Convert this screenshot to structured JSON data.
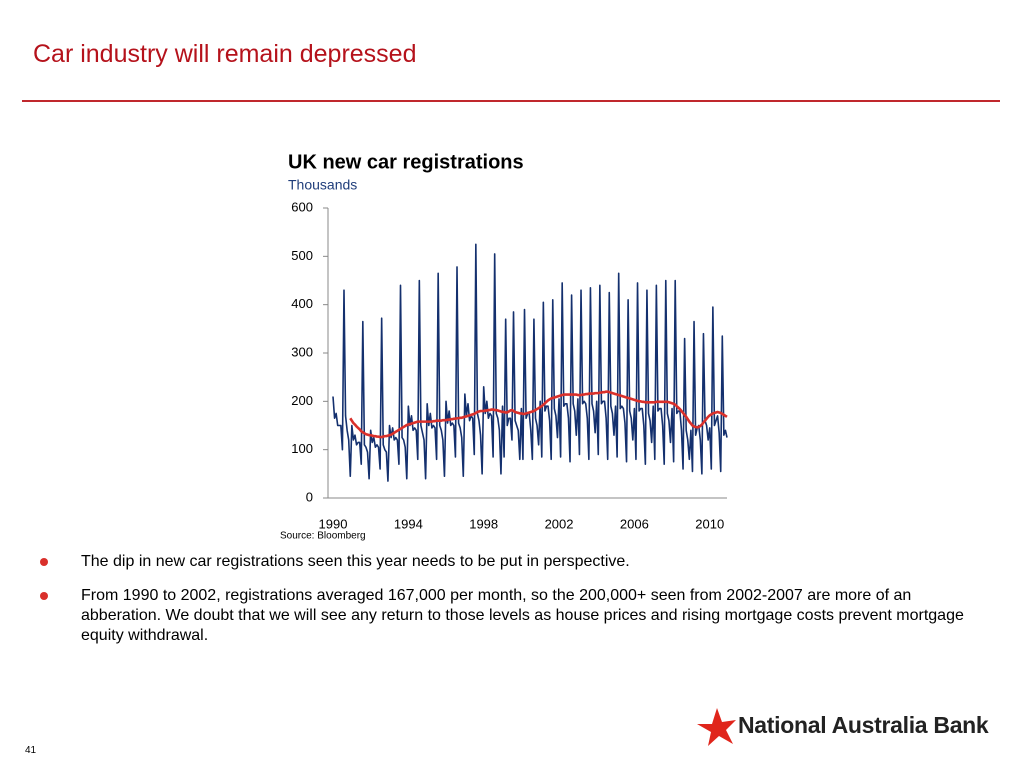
{
  "slide": {
    "title": "Car industry will remain depressed",
    "bullets": [
      "The dip in new car registrations seen this year needs to be put in perspective.",
      "From 1990 to 2002, registrations averaged 167,000 per month, so the 200,000+ seen from 2002-2007 are more of an abberation. We doubt that we will see any return to those levels as house prices and rising mortgage costs prevent mortgage equity withdrawal."
    ],
    "page_number": "41",
    "logo": "National Australia Bank"
  },
  "chart_data": {
    "type": "line",
    "title": "UK new car registrations",
    "subtitle": "Thousands",
    "source": "Source: Bloomberg",
    "categories": [
      "1990",
      null,
      null,
      null,
      null,
      null,
      null,
      null,
      null,
      null,
      null,
      null,
      null,
      null,
      null,
      null,
      null,
      null,
      null,
      null,
      null,
      null,
      null,
      null,
      null,
      null,
      null,
      null,
      null,
      null,
      null,
      null,
      null,
      null,
      null,
      null,
      null,
      null,
      null,
      null,
      null,
      null,
      null,
      null,
      null,
      null,
      null,
      null,
      "1994",
      null,
      null,
      null,
      null,
      null,
      null,
      null,
      null,
      null,
      null,
      null,
      null,
      null,
      null,
      null,
      null,
      null,
      null,
      null,
      null,
      null,
      null,
      null,
      null,
      null,
      null,
      null,
      null,
      null,
      null,
      null,
      null,
      null,
      null,
      null,
      null,
      null,
      null,
      null,
      null,
      null,
      null,
      null,
      null,
      null,
      null,
      null,
      "1998",
      null,
      null,
      null,
      null,
      null,
      null,
      null,
      null,
      null,
      null,
      null,
      null,
      null,
      null,
      null,
      null,
      null,
      null,
      null,
      null,
      null,
      null,
      null,
      null,
      null,
      null,
      null,
      null,
      null,
      null,
      null,
      null,
      null,
      null,
      null,
      null,
      null,
      null,
      null,
      null,
      null,
      null,
      null,
      null,
      null,
      null,
      null,
      "2002",
      null,
      null,
      null,
      null,
      null,
      null,
      null,
      null,
      null,
      null,
      null,
      null,
      null,
      null,
      null,
      null,
      null,
      null,
      null,
      null,
      null,
      null,
      null,
      null,
      null,
      null,
      null,
      null,
      null,
      null,
      null,
      null,
      null,
      null,
      null,
      null,
      null,
      null,
      null,
      null,
      null,
      null,
      null,
      null,
      null,
      null,
      null,
      "2006",
      null,
      null,
      null,
      null,
      null,
      null,
      null,
      null,
      null,
      null,
      null,
      null,
      null,
      null,
      null,
      null,
      null,
      null,
      null,
      null,
      null,
      null,
      null,
      null,
      null,
      null,
      null,
      null,
      null,
      null,
      null,
      null,
      null,
      null,
      null,
      null,
      null,
      null,
      null,
      null,
      null,
      null,
      null,
      null,
      null,
      null,
      null,
      "2010",
      null,
      null,
      null,
      null,
      null,
      null,
      null,
      null,
      null,
      null,
      null
    ],
    "series": [
      {
        "color": "#14306e",
        "values": [
          210,
          165,
          175,
          150,
          150,
          150,
          100,
          430,
          170,
          140,
          120,
          45,
          150,
          120,
          130,
          110,
          115,
          115,
          70,
          365,
          110,
          105,
          95,
          40,
          140,
          115,
          125,
          105,
          110,
          105,
          60,
          372,
          110,
          100,
          95,
          35,
          150,
          125,
          145,
          120,
          125,
          120,
          70,
          440,
          125,
          120,
          105,
          40,
          190,
          150,
          170,
          140,
          145,
          140,
          80,
          450,
          150,
          135,
          120,
          40,
          195,
          150,
          175,
          145,
          150,
          145,
          80,
          465,
          150,
          140,
          120,
          45,
          200,
          155,
          180,
          150,
          155,
          150,
          85,
          478,
          155,
          145,
          125,
          45,
          215,
          170,
          195,
          160,
          170,
          165,
          90,
          525,
          175,
          160,
          130,
          50,
          230,
          175,
          200,
          165,
          175,
          170,
          85,
          505,
          175,
          165,
          140,
          50,
          190,
          85,
          370,
          150,
          165,
          165,
          120,
          385,
          160,
          150,
          140,
          80,
          185,
          80,
          390,
          165,
          175,
          175,
          140,
          80,
          370,
          165,
          150,
          110,
          200,
          85,
          405,
          180,
          190,
          190,
          160,
          80,
          410,
          185,
          170,
          125,
          205,
          85,
          445,
          190,
          195,
          195,
          165,
          75,
          420,
          195,
          180,
          130,
          205,
          90,
          430,
          195,
          200,
          195,
          165,
          80,
          435,
          195,
          180,
          135,
          200,
          90,
          440,
          195,
          200,
          200,
          165,
          80,
          425,
          190,
          175,
          130,
          190,
          85,
          465,
          185,
          190,
          185,
          155,
          75,
          410,
          180,
          165,
          120,
          185,
          80,
          445,
          180,
          185,
          185,
          150,
          70,
          430,
          175,
          160,
          115,
          190,
          80,
          440,
          180,
          185,
          185,
          150,
          70,
          450,
          175,
          160,
          115,
          185,
          75,
          450,
          175,
          180,
          180,
          140,
          60,
          330,
          140,
          120,
          80,
          140,
          55,
          365,
          130,
          145,
          150,
          120,
          50,
          340,
          160,
          150,
          120,
          145,
          60,
          395,
          150,
          160,
          170,
          135,
          55,
          335,
          130,
          140,
          125
        ]
      },
      {
        "color": "#d9302b",
        "values": [
          null,
          null,
          null,
          null,
          null,
          null,
          null,
          null,
          null,
          null,
          null,
          165,
          160,
          155,
          152,
          148,
          145,
          142,
          138,
          136,
          134,
          132,
          131,
          130,
          130,
          129,
          128,
          128,
          127,
          127,
          126,
          126,
          127,
          128,
          128,
          129,
          130,
          131,
          133,
          135,
          137,
          139,
          141,
          143,
          145,
          147,
          149,
          151,
          152,
          153,
          154,
          155,
          156,
          157,
          158,
          158,
          158,
          158,
          158,
          158,
          158,
          158,
          158,
          158,
          159,
          159,
          160,
          160,
          160,
          160,
          161,
          161,
          161,
          162,
          162,
          163,
          163,
          164,
          164,
          165,
          165,
          166,
          166,
          167,
          168,
          169,
          170,
          171,
          172,
          173,
          174,
          176,
          178,
          179,
          180,
          180,
          180,
          181,
          181,
          182,
          182,
          183,
          183,
          182,
          182,
          181,
          180,
          179,
          178,
          178,
          177,
          177,
          179,
          181,
          182,
          180,
          178,
          177,
          176,
          175,
          175,
          174,
          174,
          175,
          176,
          177,
          178,
          179,
          180,
          182,
          184,
          186,
          188,
          190,
          193,
          196,
          199,
          202,
          204,
          206,
          207,
          208,
          209,
          210,
          211,
          212,
          213,
          214,
          214,
          214,
          214,
          214,
          214,
          214,
          214,
          214,
          213,
          213,
          213,
          214,
          214,
          215,
          215,
          216,
          216,
          216,
          216,
          217,
          217,
          217,
          218,
          218,
          219,
          219,
          220,
          220,
          219,
          218,
          217,
          216,
          215,
          214,
          213,
          212,
          211,
          210,
          209,
          208,
          207,
          206,
          205,
          204,
          203,
          202,
          201,
          200,
          200,
          199,
          199,
          198,
          198,
          198,
          198,
          198,
          198,
          198,
          199,
          199,
          199,
          199,
          199,
          199,
          199,
          199,
          198,
          197,
          196,
          195,
          193,
          190,
          187,
          184,
          180,
          176,
          172,
          168,
          163,
          158,
          154,
          150,
          148,
          147,
          146,
          147,
          149,
          152,
          156,
          160,
          164,
          168,
          171,
          173,
          175,
          176,
          177,
          178,
          177,
          176,
          174,
          172,
          170,
          168
        ]
      }
    ],
    "ylim": [
      0,
      600
    ],
    "yticks": [
      0,
      100,
      200,
      300,
      400,
      500,
      600
    ],
    "grid": false
  }
}
